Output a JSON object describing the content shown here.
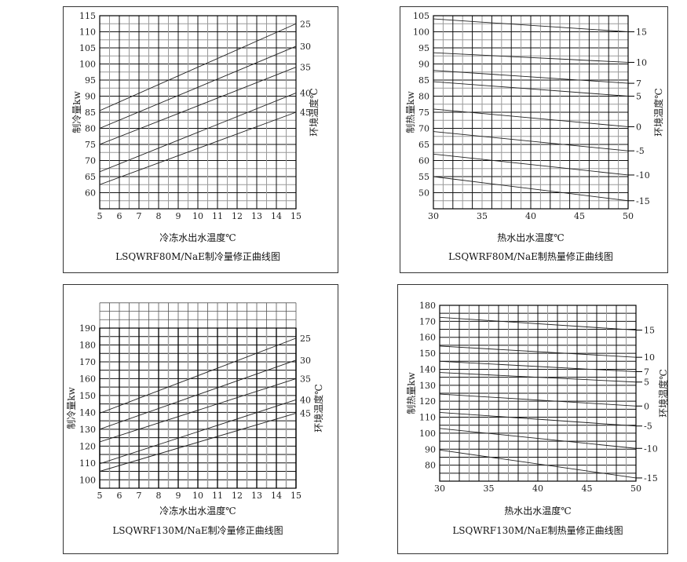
{
  "chart_data": [
    {
      "type": "line",
      "xlabel": "冷冻水出水温度℃",
      "ylabel": "制冷量kw",
      "y2label": "环境温度℃",
      "caption": "LSQWRF80M/NaE制冷量修正曲线图",
      "xlim": [
        5,
        15
      ],
      "ylim": [
        55,
        115
      ],
      "xticks": [
        5,
        6,
        7,
        8,
        9,
        10,
        11,
        12,
        13,
        14,
        15
      ],
      "yticks": [
        60,
        65,
        70,
        75,
        80,
        85,
        90,
        95,
        100,
        105,
        110,
        115
      ],
      "grid": true,
      "series": [
        {
          "name": "25",
          "x": [
            5,
            15
          ],
          "y": [
            85.5,
            112.5
          ]
        },
        {
          "name": "30",
          "x": [
            5,
            15
          ],
          "y": [
            80,
            105.5
          ]
        },
        {
          "name": "35",
          "x": [
            5,
            15
          ],
          "y": [
            75,
            99
          ]
        },
        {
          "name": "40",
          "x": [
            5,
            15
          ],
          "y": [
            66.5,
            91
          ]
        },
        {
          "name": "45",
          "x": [
            5,
            15
          ],
          "y": [
            62.5,
            85
          ]
        }
      ]
    },
    {
      "type": "line",
      "xlabel": "热水出水温度℃",
      "ylabel": "制热量kw",
      "y2label": "环境温度℃",
      "caption": "LSQWRF80M/NaE制热量修正曲线图",
      "xlim": [
        30,
        50
      ],
      "ylim": [
        45,
        105
      ],
      "xticks": [
        30,
        35,
        40,
        45,
        50
      ],
      "yticks": [
        50,
        55,
        60,
        65,
        70,
        75,
        80,
        85,
        90,
        95,
        100,
        105
      ],
      "grid": true,
      "series": [
        {
          "name": "15",
          "x": [
            30,
            50
          ],
          "y": [
            104,
            100
          ]
        },
        {
          "name": "10",
          "x": [
            30,
            50
          ],
          "y": [
            93.5,
            90.5
          ]
        },
        {
          "name": "7",
          "x": [
            30,
            50
          ],
          "y": [
            88,
            84
          ]
        },
        {
          "name": "5",
          "x": [
            30,
            50
          ],
          "y": [
            84.5,
            80
          ]
        },
        {
          "name": "0",
          "x": [
            30,
            50
          ],
          "y": [
            76,
            70.5
          ]
        },
        {
          "name": "-5",
          "x": [
            30,
            50
          ],
          "y": [
            69,
            63
          ]
        },
        {
          "name": "-10",
          "x": [
            30,
            50
          ],
          "y": [
            62,
            55.5
          ]
        },
        {
          "name": "-15",
          "x": [
            30,
            50
          ],
          "y": [
            55,
            47.5
          ]
        }
      ]
    },
    {
      "type": "line",
      "xlabel": "冷冻水出水温度℃",
      "ylabel": "制冷量kw",
      "y2label": "环境温度℃",
      "caption": "LSQWRF130M/NaE制冷量修正曲线图",
      "xlim": [
        5,
        15
      ],
      "ylim": [
        95,
        190
      ],
      "xticks": [
        5,
        6,
        7,
        8,
        9,
        10,
        11,
        12,
        13,
        14,
        15
      ],
      "yticks": [
        100,
        110,
        120,
        130,
        140,
        150,
        160,
        170,
        180,
        190
      ],
      "grid": true,
      "series": [
        {
          "name": "25",
          "x": [
            5,
            15
          ],
          "y": [
            139.5,
            184
          ]
        },
        {
          "name": "30",
          "x": [
            5,
            15
          ],
          "y": [
            130,
            171
          ]
        },
        {
          "name": "35",
          "x": [
            5,
            15
          ],
          "y": [
            122.5,
            160
          ]
        },
        {
          "name": "40",
          "x": [
            5,
            15
          ],
          "y": [
            109.5,
            147.5
          ]
        },
        {
          "name": "45",
          "x": [
            5,
            15
          ],
          "y": [
            105,
            139.5
          ]
        }
      ]
    },
    {
      "type": "line",
      "xlabel": "热水出水温度℃",
      "ylabel": "制热量kw",
      "y2label": "环境温度℃",
      "caption": "LSQWRF130M/NaE制热量修正曲线图",
      "xlim": [
        30,
        50
      ],
      "ylim": [
        70,
        180
      ],
      "xticks": [
        30,
        35,
        40,
        45,
        50
      ],
      "yticks": [
        80,
        90,
        100,
        110,
        120,
        130,
        140,
        150,
        160,
        170,
        180
      ],
      "grid": true,
      "series": [
        {
          "name": "15",
          "x": [
            30,
            50
          ],
          "y": [
            172.5,
            164.5
          ]
        },
        {
          "name": "10",
          "x": [
            30,
            50
          ],
          "y": [
            154.5,
            147.5
          ]
        },
        {
          "name": "7",
          "x": [
            30,
            50
          ],
          "y": [
            145,
            138.5
          ]
        },
        {
          "name": "5",
          "x": [
            30,
            50
          ],
          "y": [
            138,
            132
          ]
        },
        {
          "name": "0",
          "x": [
            30,
            50
          ],
          "y": [
            124.5,
            117
          ]
        },
        {
          "name": "-5",
          "x": [
            30,
            50
          ],
          "y": [
            113,
            104.5
          ]
        },
        {
          "name": "-10",
          "x": [
            30,
            50
          ],
          "y": [
            103,
            90.5
          ]
        },
        {
          "name": "-15",
          "x": [
            30,
            50
          ],
          "y": [
            89.5,
            72
          ]
        }
      ]
    }
  ]
}
